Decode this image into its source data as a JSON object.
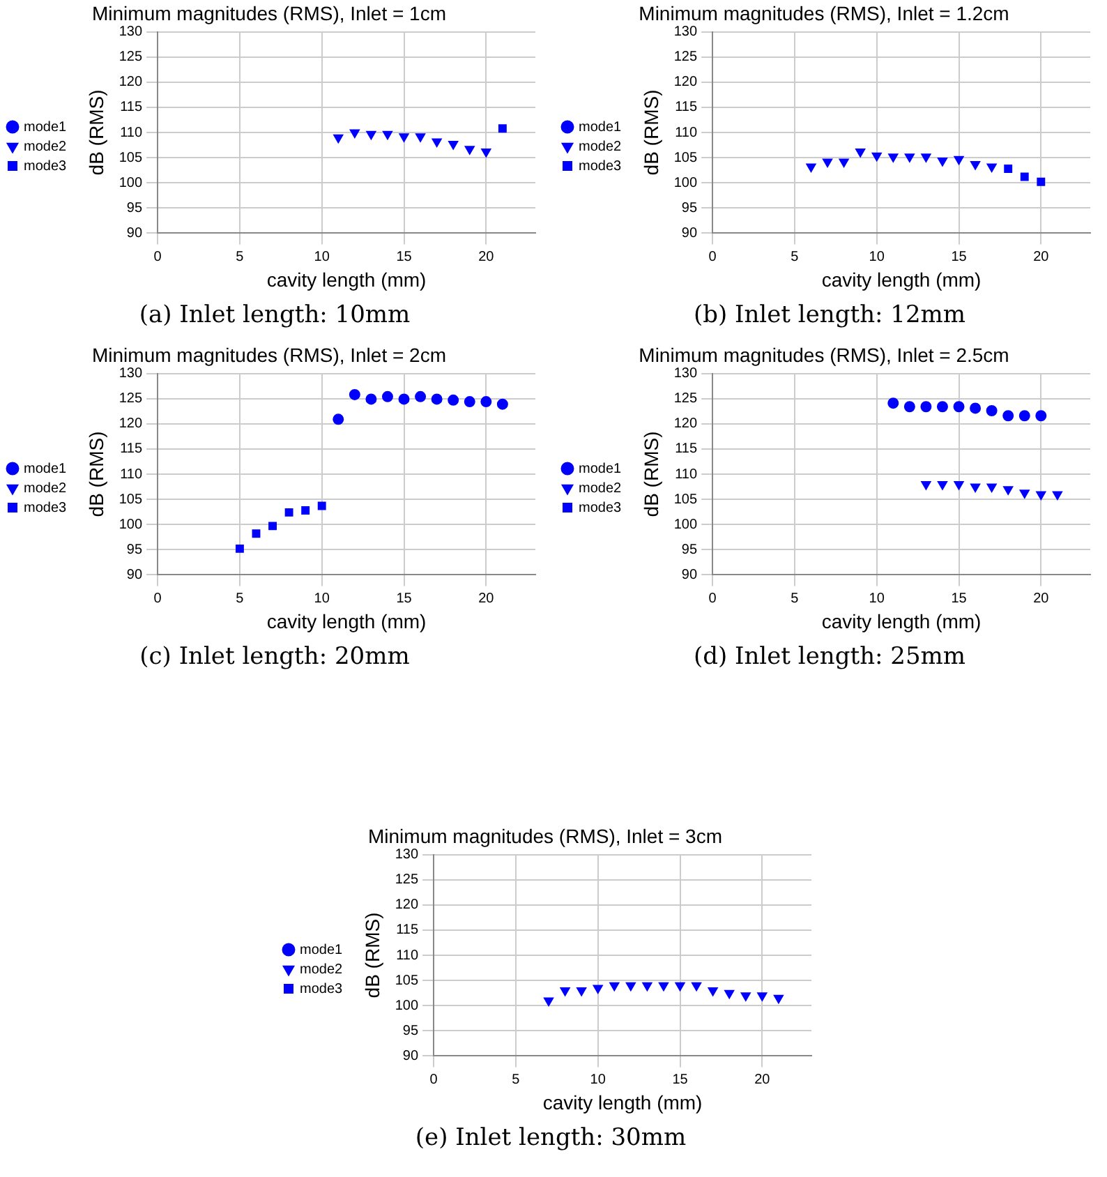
{
  "chart_data": [
    {
      "type": "scatter",
      "title": "Minimum magnitudes (RMS), Inlet = 1cm",
      "xlabel": "cavity length (mm)",
      "ylabel": "dB (RMS)",
      "xlim": [
        0,
        23
      ],
      "xticks": [
        0,
        5,
        10,
        15,
        20
      ],
      "ylim": [
        90,
        130
      ],
      "yticks": [
        90,
        95,
        100,
        105,
        110,
        115,
        120,
        125,
        130
      ],
      "grid": true,
      "legend": "left",
      "annotations": [
        "(a) Inlet length: 10mm"
      ],
      "series": [
        {
          "name": "mode1",
          "color": "#0000ff",
          "marker": "circle"
        },
        {
          "name": "mode2",
          "color": "#0000ff",
          "marker": "triangle",
          "x": [
            11,
            12,
            13,
            14,
            15,
            16,
            17,
            18,
            19,
            20
          ],
          "values": [
            109,
            110,
            109.7,
            109.7,
            109.2,
            109.2,
            108.2,
            107.7,
            106.7,
            106.2
          ]
        },
        {
          "name": "mode3",
          "color": "#0000ff",
          "marker": "square",
          "x": [
            21
          ],
          "values": [
            110.8
          ]
        }
      ]
    },
    {
      "type": "scatter",
      "title": "Minimum magnitudes (RMS), Inlet = 1.2cm",
      "xlabel": "cavity length (mm)",
      "ylabel": "dB (RMS)",
      "xlim": [
        0,
        23
      ],
      "xticks": [
        0,
        5,
        10,
        15,
        20
      ],
      "ylim": [
        90,
        130
      ],
      "yticks": [
        90,
        95,
        100,
        105,
        110,
        115,
        120,
        125,
        130
      ],
      "grid": true,
      "legend": "left",
      "annotations": [
        "(b) Inlet length: 12mm"
      ],
      "series": [
        {
          "name": "mode1",
          "color": "#0000ff",
          "marker": "circle"
        },
        {
          "name": "mode2",
          "color": "#0000ff",
          "marker": "triangle",
          "x": [
            6,
            7,
            8,
            9,
            10,
            11,
            12,
            13,
            14,
            15,
            16,
            17
          ],
          "values": [
            103.2,
            104.2,
            104.2,
            106.2,
            105.4,
            105.2,
            105.2,
            105.2,
            104.4,
            104.7,
            103.7,
            103.2
          ]
        },
        {
          "name": "mode3",
          "color": "#0000ff",
          "marker": "square",
          "x": [
            18,
            19,
            20
          ],
          "values": [
            102.8,
            101.2,
            100.2
          ]
        }
      ]
    },
    {
      "type": "scatter",
      "title": "Minimum magnitudes (RMS), Inlet = 2cm",
      "xlabel": "cavity length (mm)",
      "ylabel": "dB (RMS)",
      "xlim": [
        0,
        23
      ],
      "xticks": [
        0,
        5,
        10,
        15,
        20
      ],
      "ylim": [
        90,
        130
      ],
      "yticks": [
        90,
        95,
        100,
        105,
        110,
        115,
        120,
        125,
        130
      ],
      "grid": true,
      "legend": "left",
      "annotations": [
        "(c) Inlet length: 20mm"
      ],
      "series": [
        {
          "name": "mode1",
          "color": "#0000ff",
          "marker": "circle",
          "x": [
            11,
            12,
            13,
            14,
            15,
            16,
            17,
            18,
            19,
            20,
            21
          ],
          "values": [
            120.9,
            125.8,
            124.9,
            125.4,
            124.9,
            125.4,
            124.9,
            124.7,
            124.4,
            124.4,
            123.9
          ]
        },
        {
          "name": "mode2",
          "color": "#0000ff",
          "marker": "triangle"
        },
        {
          "name": "mode3",
          "color": "#0000ff",
          "marker": "square",
          "x": [
            5,
            6,
            7,
            8,
            9,
            10
          ],
          "values": [
            95.2,
            98.2,
            99.7,
            102.4,
            102.8,
            103.7
          ]
        }
      ]
    },
    {
      "type": "scatter",
      "title": "Minimum magnitudes (RMS), Inlet = 2.5cm",
      "xlabel": "cavity length (mm)",
      "ylabel": "dB (RMS)",
      "xlim": [
        0,
        23
      ],
      "xticks": [
        0,
        5,
        10,
        15,
        20
      ],
      "ylim": [
        90,
        130
      ],
      "yticks": [
        90,
        95,
        100,
        105,
        110,
        115,
        120,
        125,
        130
      ],
      "grid": true,
      "legend": "left",
      "annotations": [
        "(d) Inlet length: 25mm"
      ],
      "series": [
        {
          "name": "mode1",
          "color": "#0000ff",
          "marker": "circle",
          "x": [
            11,
            12,
            13,
            14,
            15,
            16,
            17,
            18,
            19,
            20
          ],
          "values": [
            124.1,
            123.4,
            123.4,
            123.4,
            123.4,
            123.1,
            122.6,
            121.6,
            121.6,
            121.6
          ]
        },
        {
          "name": "mode2",
          "color": "#0000ff",
          "marker": "triangle",
          "x": [
            13,
            14,
            15,
            16,
            17,
            18,
            19,
            20,
            21
          ],
          "values": [
            108,
            108,
            108,
            107.5,
            107.5,
            107,
            106.3,
            106,
            106
          ]
        },
        {
          "name": "mode3",
          "color": "#0000ff",
          "marker": "square"
        }
      ]
    },
    {
      "type": "scatter",
      "title": "Minimum magnitudes (RMS), Inlet = 3cm",
      "xlabel": "cavity length (mm)",
      "ylabel": "dB (RMS)",
      "xlim": [
        0,
        23
      ],
      "xticks": [
        0,
        5,
        10,
        15,
        20
      ],
      "ylim": [
        90,
        130
      ],
      "yticks": [
        90,
        95,
        100,
        105,
        110,
        115,
        120,
        125,
        130
      ],
      "grid": true,
      "legend": "left",
      "annotations": [
        "(e) Inlet length: 30mm"
      ],
      "series": [
        {
          "name": "mode1",
          "color": "#0000ff",
          "marker": "circle"
        },
        {
          "name": "mode2",
          "color": "#0000ff",
          "marker": "triangle",
          "x": [
            7,
            8,
            9,
            10,
            11,
            12,
            13,
            14,
            15,
            16,
            17,
            18,
            19,
            20,
            21
          ],
          "values": [
            101,
            103,
            103,
            103.5,
            104,
            104,
            104,
            104,
            104,
            104,
            103,
            102.5,
            102,
            102,
            101.5
          ]
        },
        {
          "name": "mode3",
          "color": "#0000ff",
          "marker": "square"
        }
      ]
    }
  ]
}
